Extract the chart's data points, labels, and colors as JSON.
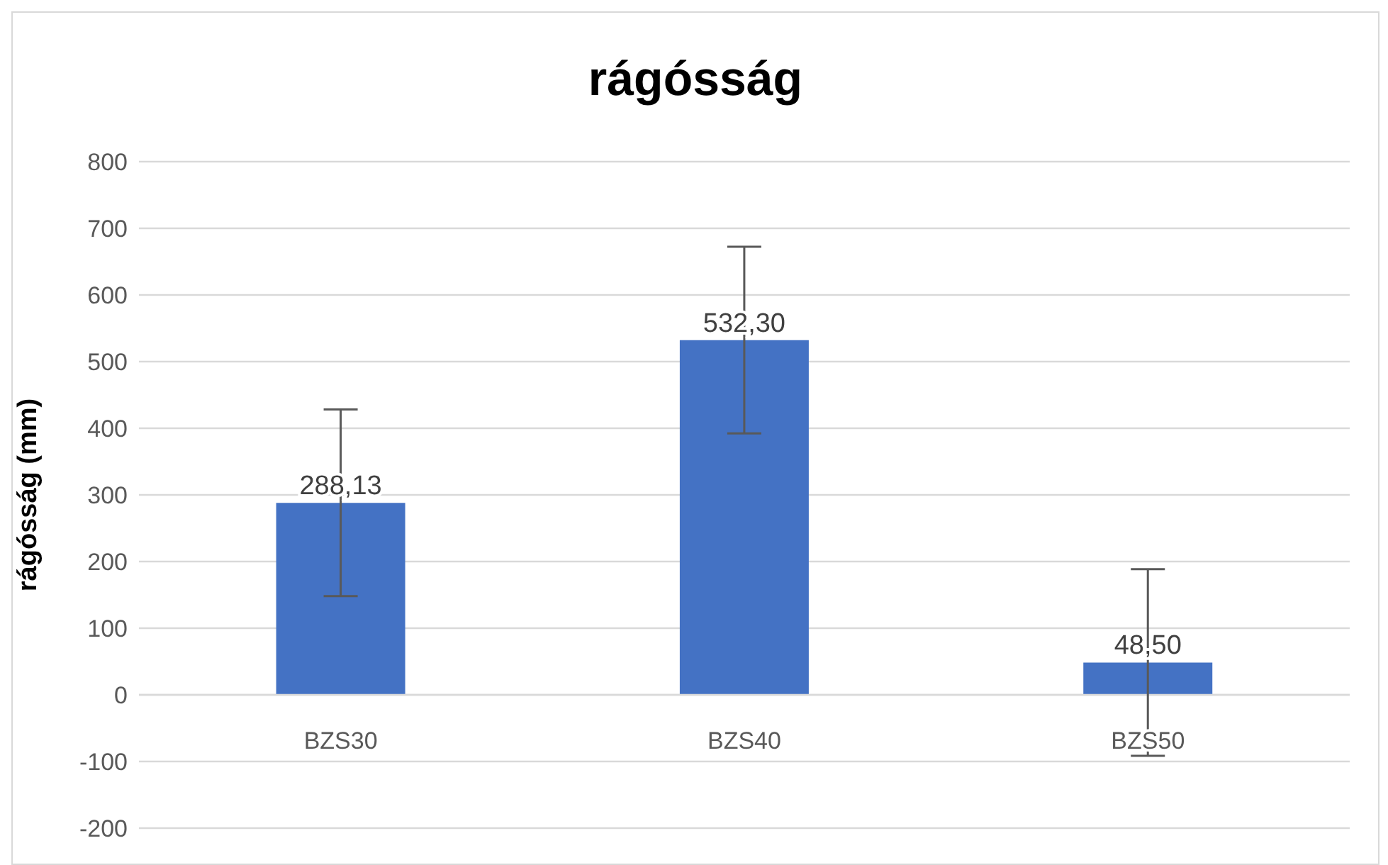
{
  "chart_data": {
    "type": "bar",
    "title": "rágósság",
    "ylabel": "rágósság (mm)",
    "categories": [
      "BZS30",
      "BZS40",
      "BZS50"
    ],
    "series": [
      {
        "color": "#4472c4",
        "values": [
          288.13,
          532.3,
          48.5
        ],
        "errors": [
          140,
          140,
          140
        ],
        "value_labels": [
          "288,13",
          "532,30",
          "48,50"
        ]
      }
    ],
    "ylim": [
      -200,
      800
    ],
    "yticks": [
      -200,
      -100,
      0,
      100,
      200,
      300,
      400,
      500,
      600,
      700,
      800
    ],
    "grid": "y"
  }
}
